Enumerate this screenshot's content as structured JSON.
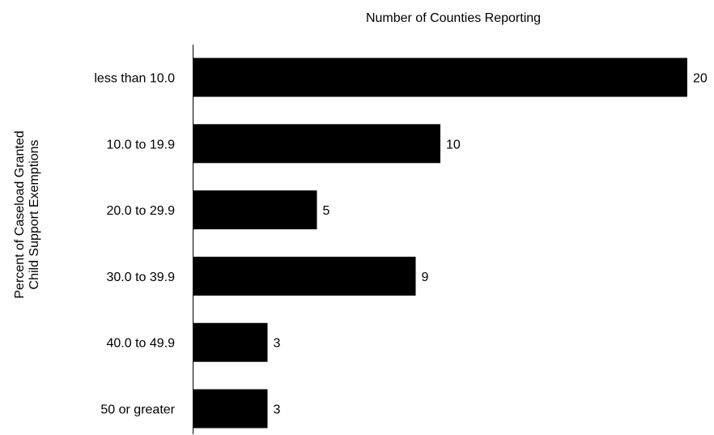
{
  "chart_data": {
    "type": "bar",
    "orientation": "horizontal",
    "title": "Number of Counties Reporting",
    "ylabel": [
      "Percent of Caseload Granted",
      "Child Support Exemptions"
    ],
    "xlabel": "",
    "categories": [
      "less than 10.0",
      "10.0 to 19.9",
      "20.0 to 29.9",
      "30.0 to 39.9",
      "40.0 to 49.9",
      "50 or greater"
    ],
    "values": [
      20,
      10,
      5,
      9,
      3,
      3
    ],
    "value_labels": [
      "20",
      "10",
      "5",
      "9",
      "3",
      "3"
    ],
    "xlim": [
      0,
      20
    ],
    "bar_color": "#000000",
    "grid": false,
    "legend": "none"
  }
}
